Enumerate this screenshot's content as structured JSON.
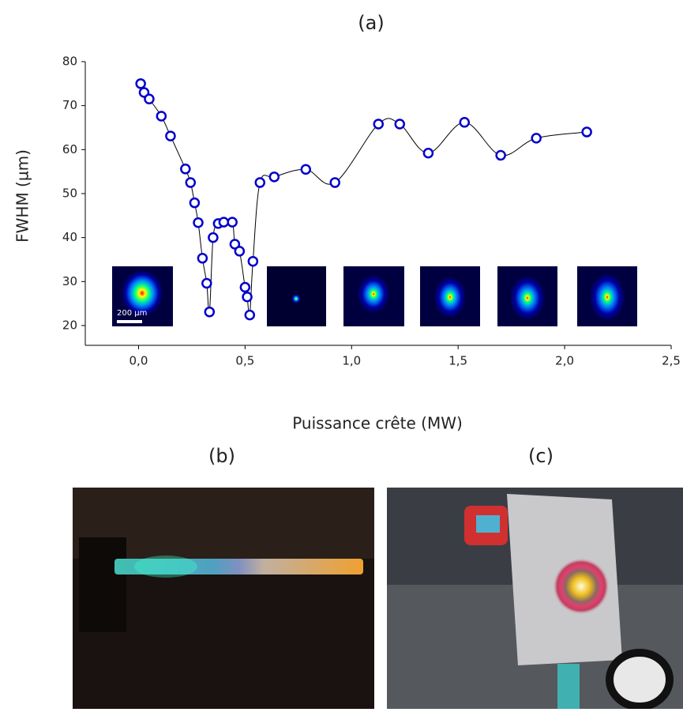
{
  "chart_data": {
    "type": "line",
    "title": "(a)",
    "x_label": "Puissance crête (MW)",
    "y_label": "FWHM (µm)",
    "annotation": "200 µm",
    "x": [
      0.01,
      0.026,
      0.05,
      0.107,
      0.15,
      0.22,
      0.244,
      0.263,
      0.28,
      0.3,
      0.32,
      0.333,
      0.35,
      0.374,
      0.4,
      0.44,
      0.452,
      0.474,
      0.5,
      0.51,
      0.522,
      0.537,
      0.57,
      0.637,
      0.785,
      0.922,
      1.126,
      1.226,
      1.36,
      1.53,
      1.7,
      1.867,
      2.104
    ],
    "series": [
      {
        "name": "FWHM",
        "color": "#0000cc",
        "line_color": "#000000",
        "values": [
          75,
          73,
          71.5,
          67.6,
          63.1,
          55.6,
          52.5,
          47.9,
          43.4,
          35.3,
          29.6,
          23.1,
          40,
          43.2,
          43.5,
          43.5,
          38.5,
          36.9,
          28.7,
          26.5,
          22.4,
          34.6,
          52.5,
          53.8,
          55.5,
          52.5,
          65.8,
          65.8,
          59.2,
          66.2,
          58.7,
          62.6,
          64
        ]
      }
    ],
    "xlim": [
      -0.25,
      2.5
    ],
    "ylim": [
      15.5,
      80
    ],
    "xticks": [
      {
        "value": 0,
        "label": "0,0"
      },
      {
        "value": 0.5,
        "label": "0,5"
      },
      {
        "value": 1,
        "label": "1,0"
      },
      {
        "value": 1.5,
        "label": "1,5"
      },
      {
        "value": 2,
        "label": "2,0"
      },
      {
        "value": 2.5,
        "label": "2,5"
      }
    ],
    "yticks": [
      20,
      30,
      40,
      50,
      60,
      70,
      80
    ]
  },
  "panels": [
    {
      "label": "(b)"
    },
    {
      "label": "(c)"
    }
  ]
}
